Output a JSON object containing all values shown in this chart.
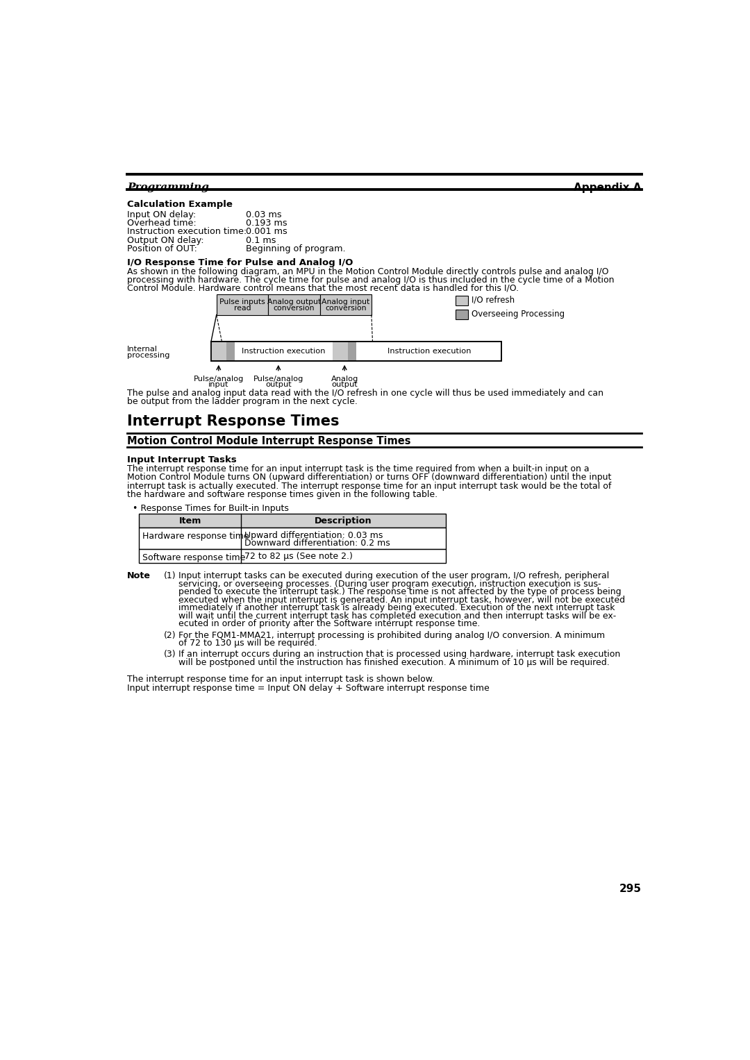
{
  "header_left": "Programming",
  "header_right": "Appendix A",
  "page_number": "295",
  "calc_example_title": "Calculation Example",
  "calc_items": [
    [
      "Input ON delay:",
      "0.03 ms"
    ],
    [
      "Overhead time:",
      "0.193 ms"
    ],
    [
      "Instruction execution time:",
      "0.001 ms"
    ],
    [
      "Output ON delay:",
      "0.1 ms"
    ],
    [
      "Position of OUT:",
      "Beginning of program."
    ]
  ],
  "io_response_title": "I/O Response Time for Pulse and Analog I/O",
  "io_response_body": "As shown in the following diagram, an MPU in the Motion Control Module directly controls pulse and analog I/O\nprocessing with hardware. The cycle time for pulse and analog I/O is thus included in the cycle time of a Motion\nControl Module. Hardware control means that the most recent data is handled for this I/O.",
  "io_footer": "The pulse and analog input data read with the I/O refresh in one cycle will thus be used immediately and can\nbe output from the ladder program in the next cycle.",
  "interrupt_title": "Interrupt Response Times",
  "motion_control_title": "Motion Control Module Interrupt Response Times",
  "input_interrupt_title": "Input Interrupt Tasks",
  "input_interrupt_body": "The interrupt response time for an input interrupt task is the time required from when a built-in input on a\nMotion Control Module turns ON (upward differentiation) or turns OFF (downward differentiation) until the input\ninterrupt task is actually executed. The interrupt response time for an input interrupt task would be the total of\nthe hardware and software response times given in the following table.",
  "bullet_text": "Response Times for Built-in Inputs",
  "table_headers": [
    "Item",
    "Description"
  ],
  "table_rows": [
    [
      "Hardware response time",
      "Upward differentiation: 0.03 ms\nDownward differentiation: 0.2 ms"
    ],
    [
      "Software response time",
      "72 to 82 μs (See note 2.)"
    ]
  ],
  "note_title": "Note",
  "note1_num": "(1)",
  "note1_lines": [
    "Input interrupt tasks can be executed during execution of the user program, I/O refresh, peripheral",
    "servicing, or overseeing processes. (During user program execution, instruction execution is sus-",
    "pended to execute the interrupt task.) The response time is not affected by the type of process being",
    "executed when the input interrupt is generated. An input interrupt task, however, will not be executed",
    "immediately if another interrupt task is already being executed. Execution of the next interrupt task",
    "will wait until the current interrupt task has completed execution and then interrupt tasks will be ex-",
    "ecuted in order of priority after the Software interrupt response time."
  ],
  "note2_num": "(2)",
  "note2_lines": [
    "For the FQM1-MMA21, interrupt processing is prohibited during analog I/O conversion. A minimum",
    "of 72 to 130 μs will be required."
  ],
  "note3_num": "(3)",
  "note3_lines": [
    "If an interrupt occurs during an instruction that is processed using hardware, interrupt task execution",
    "will be postponed until the instruction has finished execution. A minimum of 10 μs will be required."
  ],
  "final_line1": "The interrupt response time for an input interrupt task is shown below.",
  "final_line2": "Input interrupt response time = Input ON delay + Software interrupt response time",
  "light_gray": "#c8c8c8",
  "mid_gray": "#a0a0a0",
  "table_header_gray": "#d0d0d0"
}
